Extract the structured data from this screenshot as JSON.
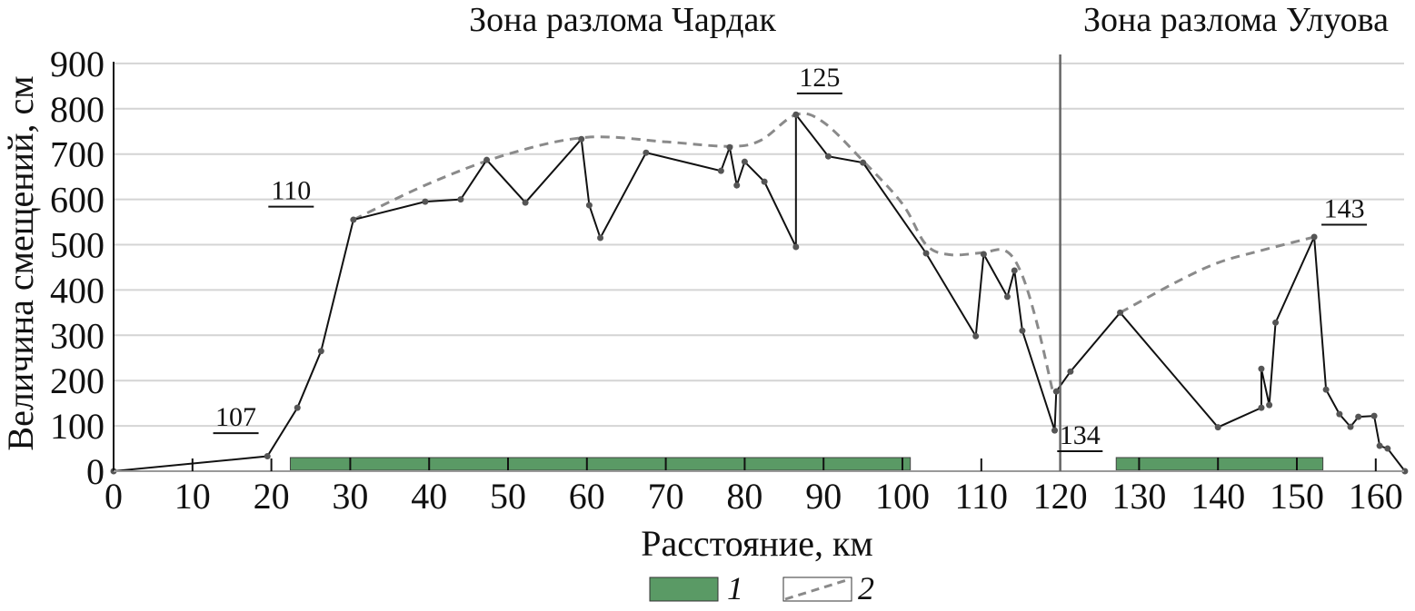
{
  "chart_data": {
    "type": "line",
    "zone_titles": [
      "Зона разлома Чардак",
      "Зона разлома Улуова"
    ],
    "xlabel": "Расстояние, км",
    "ylabel": "Величина смещений, см",
    "xlim": [
      0,
      164
    ],
    "ylim": [
      0,
      900
    ],
    "xticks": [
      0,
      10,
      20,
      30,
      40,
      50,
      60,
      70,
      80,
      90,
      100,
      110,
      120,
      130,
      140,
      150,
      160
    ],
    "yticks": [
      0,
      100,
      200,
      300,
      400,
      500,
      600,
      700,
      800,
      900
    ],
    "grid": "horizontal",
    "zone_boundary_x": 120,
    "colors": {
      "measured": "#111111",
      "envelope": "#8a8a8a",
      "segment": "#5a9a65",
      "grid": "#d4d4d4",
      "boundary": "#666666"
    },
    "measured": [
      [
        0,
        0
      ],
      [
        19.5,
        33
      ],
      [
        23.3,
        140
      ],
      [
        26.3,
        265
      ],
      [
        30.4,
        555
      ],
      [
        39.5,
        595
      ],
      [
        44,
        600
      ],
      [
        47.3,
        687
      ],
      [
        52.2,
        593
      ],
      [
        59.3,
        733
      ],
      [
        60.3,
        587
      ],
      [
        61.7,
        515
      ],
      [
        67.5,
        703
      ],
      [
        77,
        663
      ],
      [
        78.1,
        715
      ],
      [
        79,
        631
      ],
      [
        80,
        683
      ],
      [
        82.5,
        639
      ],
      [
        86.5,
        495
      ],
      [
        86.5,
        787
      ],
      [
        90.6,
        695
      ],
      [
        95,
        681
      ],
      [
        103,
        481
      ],
      [
        109.3,
        298
      ],
      [
        110.3,
        479
      ],
      [
        113.3,
        385
      ],
      [
        114.2,
        443
      ],
      [
        115.2,
        310
      ],
      [
        119.3,
        90
      ],
      [
        119.5,
        176
      ],
      [
        121.3,
        220
      ],
      [
        127.6,
        350
      ],
      [
        140,
        97
      ],
      [
        145.5,
        140
      ],
      [
        145.5,
        226
      ],
      [
        146.5,
        146
      ],
      [
        147.3,
        328
      ],
      [
        152.2,
        517
      ],
      [
        153.7,
        180
      ],
      [
        155.4,
        126
      ],
      [
        156.8,
        98
      ],
      [
        157.8,
        120
      ],
      [
        159.8,
        122
      ],
      [
        160.5,
        56
      ],
      [
        161.5,
        50
      ],
      [
        163.7,
        0
      ]
    ],
    "envelope": [
      [
        [
          30.4,
          555
        ],
        [
          40,
          635
        ],
        [
          50,
          700
        ],
        [
          60,
          737
        ],
        [
          70,
          727
        ],
        [
          78,
          717
        ],
        [
          82,
          730
        ],
        [
          86.5,
          787
        ],
        [
          90,
          770
        ],
        [
          95,
          685
        ],
        [
          100,
          590
        ],
        [
          103,
          500
        ],
        [
          106,
          478
        ],
        [
          110,
          482
        ],
        [
          113,
          487
        ],
        [
          115,
          440
        ],
        [
          117,
          330
        ],
        [
          119,
          180
        ]
      ],
      [
        [
          127.6,
          350
        ],
        [
          135,
          420
        ],
        [
          140,
          460
        ],
        [
          145,
          485
        ],
        [
          152.2,
          517
        ]
      ]
    ],
    "segments": [
      {
        "from": 22.4,
        "to": 101,
        "ticks": [
          30,
          40,
          50,
          60,
          70,
          80,
          90,
          100
        ]
      },
      {
        "from": 127.1,
        "to": 153.3,
        "ticks": [
          130,
          140,
          150
        ]
      }
    ],
    "axis_small_ticks": [
      10,
      20,
      110,
      120,
      160
    ],
    "annotations": [
      {
        "text": "107",
        "x": 15.5,
        "y": 100
      },
      {
        "text": "110",
        "x": 22.5,
        "y": 600
      },
      {
        "text": "125",
        "x": 89.5,
        "y": 850
      },
      {
        "text": "134",
        "x": 122.5,
        "y": 60
      },
      {
        "text": "143",
        "x": 156,
        "y": 560
      }
    ],
    "legend": {
      "placement": "bottom",
      "items": [
        {
          "label": "1",
          "kind": "segment"
        },
        {
          "label": "2",
          "kind": "envelope"
        }
      ]
    }
  }
}
